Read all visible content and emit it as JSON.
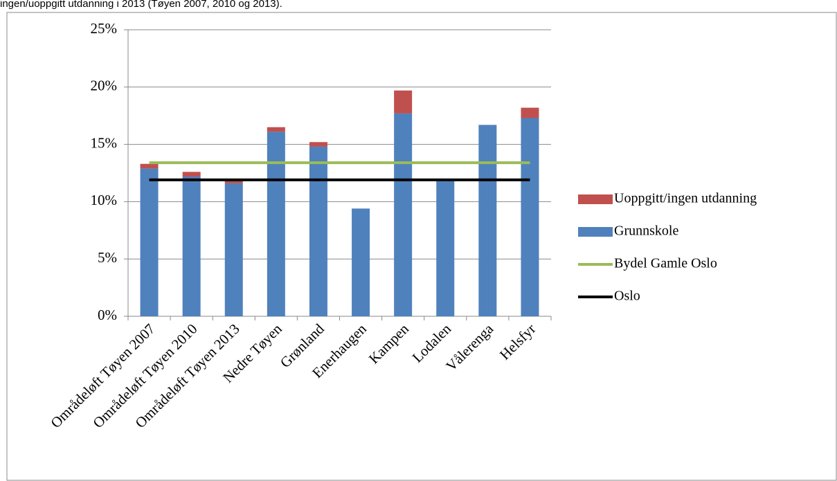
{
  "caption": "ingen/uoppgitt utdanning i 2013 (Tøyen 2007, 2010 og 2013).",
  "chart_data": {
    "type": "bar",
    "categories": [
      "Områdeløft Tøyen 2007",
      "Områdeløft Tøyen 2010",
      "Områdeløft Tøyen 2013",
      "Nedre Tøyen",
      "Grønland",
      "Enerhaugen",
      "Kampen",
      "Lodalen",
      "Vålerenga",
      "Helsfyr"
    ],
    "series": [
      {
        "name": "Uoppgitt/ingen utdanning",
        "kind": "bar",
        "color": "#c0504d",
        "values": [
          0.4,
          0.4,
          0.3,
          0.4,
          0.4,
          0,
          2.0,
          0,
          0,
          0.9
        ]
      },
      {
        "name": "Grunnskole",
        "kind": "bar",
        "color": "#4f81bd",
        "values": [
          12.9,
          12.2,
          11.6,
          16.1,
          14.8,
          9.4,
          17.7,
          11.8,
          16.7,
          17.3
        ]
      },
      {
        "name": "Bydel Gamle Oslo",
        "kind": "line",
        "color": "#9bbb59",
        "values": [
          13.4,
          13.4,
          13.4,
          13.4,
          13.4,
          13.4,
          13.4,
          13.4,
          13.4,
          13.4
        ]
      },
      {
        "name": "Oslo",
        "kind": "line",
        "color": "#000000",
        "values": [
          11.9,
          11.9,
          11.9,
          11.9,
          11.9,
          11.9,
          11.9,
          11.9,
          11.9,
          11.9
        ]
      }
    ],
    "stack_order": [
      1,
      0
    ],
    "ylim": [
      0,
      25
    ],
    "yticks": [
      {
        "value": 0,
        "label": "0%"
      },
      {
        "value": 5,
        "label": "5%"
      },
      {
        "value": 10,
        "label": "10%"
      },
      {
        "value": 15,
        "label": "15%"
      },
      {
        "value": 20,
        "label": "20%"
      },
      {
        "value": 25,
        "label": "25%"
      }
    ],
    "grid": true,
    "legend": "right"
  }
}
